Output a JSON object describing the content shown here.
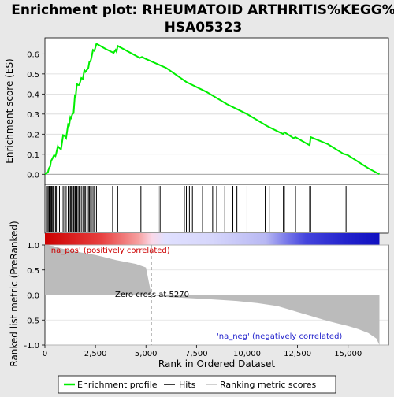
{
  "chart_data": {
    "type": "line",
    "title": "Enrichment plot: RHEUMATOID ARTHRITIS%KEGG%HSA05323",
    "title_lines": [
      "Enrichment plot: RHEUMATOID ARTHRITIS%KEGG%",
      "HSA05323"
    ],
    "top_panel": {
      "ylabel": "Enrichment score (ES)",
      "ylim": [
        -0.05,
        0.68
      ],
      "yticks": [
        0.0,
        0.1,
        0.2,
        0.3,
        0.4,
        0.5,
        0.6
      ],
      "ytick_labels": [
        "0.0",
        "0.1",
        "0.2",
        "0.3",
        "0.4",
        "0.5",
        "0.6"
      ],
      "line_color": "#00ee00",
      "series": [
        {
          "name": "Enrichment profile",
          "x": [
            0,
            80,
            150,
            200,
            260,
            300,
            380,
            450,
            520,
            560,
            640,
            720,
            800,
            900,
            980,
            1050,
            1150,
            1200,
            1260,
            1300,
            1360,
            1420,
            1480,
            1520,
            1580,
            1640,
            1700,
            1800,
            1880,
            1950,
            2000,
            2080,
            2150,
            2200,
            2260,
            2300,
            2380,
            2450,
            2550,
            2650,
            3000,
            3400,
            3500,
            3550,
            3600,
            4700,
            4800,
            5000,
            6000,
            7000,
            8000,
            9000,
            10000,
            11000,
            11800,
            11850,
            12000,
            12300,
            12400,
            13000,
            13100,
            13150,
            14000,
            14800,
            14850,
            15000,
            16000,
            16550
          ],
          "y": [
            0.0,
            0.005,
            0.01,
            0.03,
            0.04,
            0.065,
            0.08,
            0.095,
            0.09,
            0.105,
            0.14,
            0.13,
            0.125,
            0.195,
            0.19,
            0.18,
            0.25,
            0.245,
            0.285,
            0.28,
            0.3,
            0.305,
            0.39,
            0.385,
            0.45,
            0.445,
            0.445,
            0.48,
            0.475,
            0.52,
            0.51,
            0.52,
            0.53,
            0.56,
            0.565,
            0.58,
            0.62,
            0.615,
            0.65,
            0.645,
            0.625,
            0.605,
            0.62,
            0.61,
            0.64,
            0.58,
            0.585,
            0.575,
            0.53,
            0.46,
            0.41,
            0.35,
            0.3,
            0.24,
            0.2,
            0.21,
            0.2,
            0.18,
            0.185,
            0.15,
            0.145,
            0.185,
            0.15,
            0.1,
            0.1,
            0.095,
            0.03,
            0.0
          ]
        }
      ]
    },
    "hits": [
      80,
      150,
      200,
      230,
      260,
      300,
      330,
      380,
      420,
      450,
      520,
      560,
      640,
      720,
      800,
      900,
      980,
      1050,
      1150,
      1200,
      1260,
      1300,
      1360,
      1420,
      1480,
      1520,
      1580,
      1640,
      1700,
      1800,
      1880,
      1950,
      2000,
      2080,
      2150,
      2200,
      2260,
      2300,
      2380,
      2450,
      2550,
      3350,
      3600,
      4750,
      5400,
      5600,
      5700,
      6900,
      7000,
      7150,
      7300,
      7800,
      8300,
      8500,
      8900,
      9300,
      9500,
      10000,
      10900,
      11100,
      11800,
      11850,
      12400,
      13100,
      13150,
      14900
    ],
    "ranked_panel": {
      "ylabel": "Ranked list metric (PreRanked)",
      "ylim": [
        -1.0,
        1.0
      ],
      "yticks": [
        1.0,
        0.5,
        0.0,
        -0.5,
        -1.0
      ],
      "ytick_labels": [
        "1.0",
        "0.5",
        "0.0",
        "-0.5",
        "-1.0"
      ],
      "x": [
        0,
        400,
        800,
        1500,
        2500,
        3500,
        4500,
        5000,
        5270,
        6000,
        8000,
        9500,
        10500,
        11500,
        12000,
        12500,
        13000,
        13500,
        14000,
        14500,
        15000,
        15500,
        16000,
        16400,
        16550
      ],
      "y": [
        1.0,
        0.98,
        0.93,
        0.87,
        0.8,
        0.7,
        0.62,
        0.55,
        0.0,
        -0.04,
        -0.08,
        -0.12,
        -0.16,
        -0.22,
        -0.28,
        -0.34,
        -0.4,
        -0.46,
        -0.52,
        -0.57,
        -0.62,
        -0.68,
        -0.76,
        -0.87,
        -1.0
      ],
      "pos_label": "'na_pos' (positively correlated)",
      "neg_label": "'na_neg' (negatively correlated)",
      "zero_cross_label": "Zero cross at 5270",
      "zero_cross": 5270
    },
    "xlabel": "Rank in Ordered Dataset",
    "xlim": [
      0,
      17000
    ],
    "xticks": [
      0,
      2500,
      5000,
      7500,
      10000,
      12500,
      15000
    ],
    "xtick_labels": [
      "0",
      "2,500",
      "5,000",
      "7,500",
      "10,000",
      "12,500",
      "15,000"
    ],
    "n_genes": 16550,
    "legend": {
      "placement": "bottom",
      "entries": [
        "Enrichment profile",
        "Hits",
        "Ranking metric scores"
      ],
      "colors": [
        "#00ee00",
        "#000000",
        "#c0c0c0"
      ]
    }
  }
}
